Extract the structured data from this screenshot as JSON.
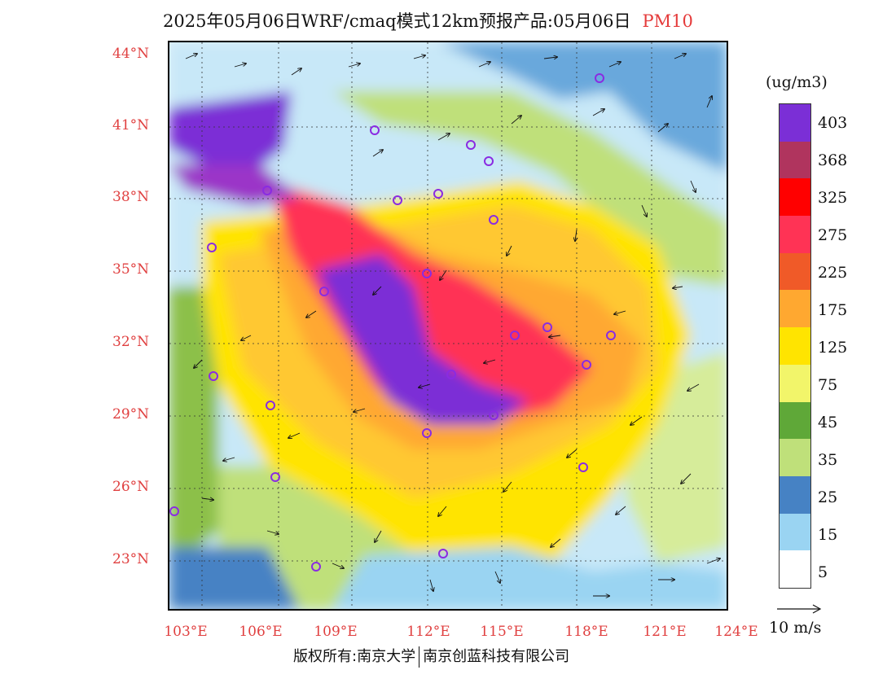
{
  "title": {
    "main": "2025年05月06日WRF/cmaq模式12km预报产品:05月06日",
    "pollutant": "PM10"
  },
  "axes": {
    "lat_labels": [
      "44°N",
      "41°N",
      "38°N",
      "35°N",
      "32°N",
      "29°N",
      "26°N",
      "23°N"
    ],
    "lon_labels": [
      "103°E",
      "106°E",
      "109°E",
      "112°E",
      "115°E",
      "118°E",
      "121°E",
      "124°E"
    ]
  },
  "legend": {
    "unit": "(ug/m3)",
    "labels": [
      "403",
      "368",
      "325",
      "275",
      "225",
      "175",
      "125",
      "75",
      "45",
      "35",
      "25",
      "15",
      "5"
    ],
    "colors": [
      "#7b2fd6",
      "#9b35c8",
      "#b0345e",
      "#c4147a",
      "#ff0000",
      "#ff3355",
      "#ff6666",
      "#f05a28",
      "#ff8c00",
      "#ffa830",
      "#ffc830",
      "#ffe400",
      "#ffef7a",
      "#f2f56a",
      "#5fa838",
      "#8cc04a",
      "#bfe07a",
      "#d6ec9a",
      "#dfebbf",
      "#4682c4",
      "#69a8dc",
      "#9ad4f2",
      "#c8e8f8",
      "#ffffff"
    ],
    "wind_ref": "10 m/s"
  },
  "copyright": {
    "left": "版权所有:南京大学",
    "right": "南京创蓝科技有限公司"
  }
}
